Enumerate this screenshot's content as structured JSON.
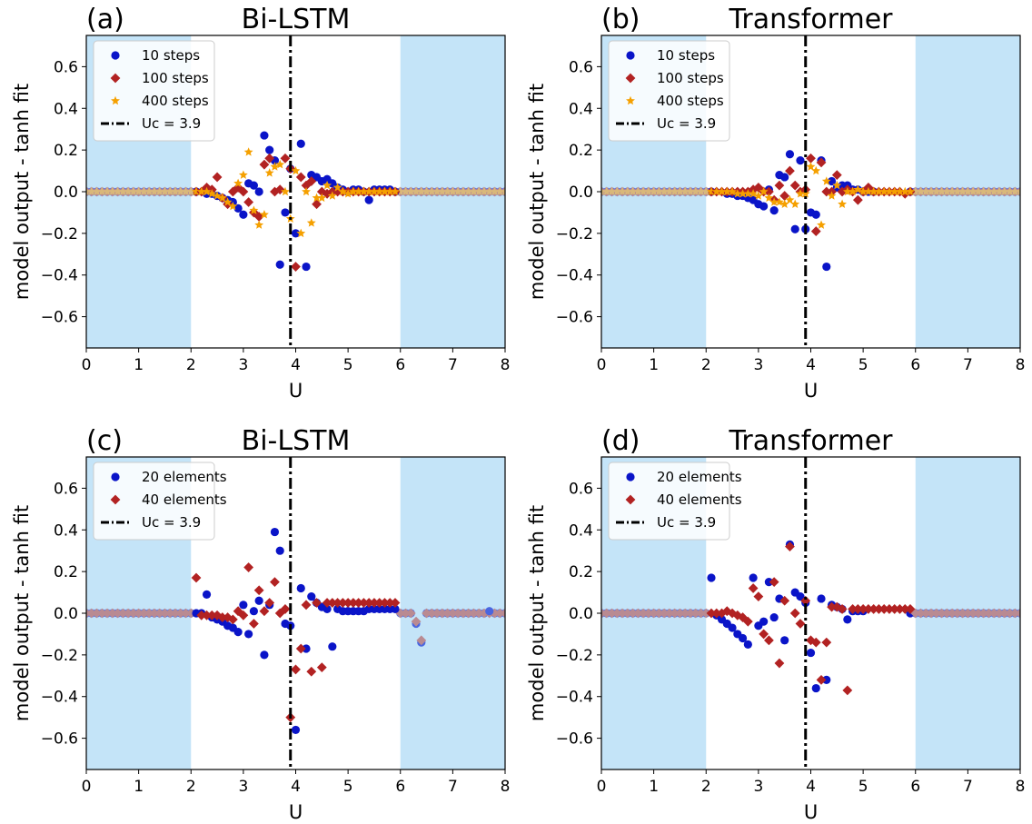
{
  "figure": {
    "colors": {
      "shade": "#c4e4f8",
      "blue": "#0a14c8",
      "blue_outside": "#4a66e0",
      "red": "#b22222",
      "red_outside": "#b98a92",
      "orange": "#f5a000",
      "orange_outside": "#d9b87a",
      "critical_line": "#000000"
    }
  },
  "chart_data": [
    {
      "type": "scatter",
      "panel_label": "(a)",
      "title": "Bi-LSTM",
      "xlabel": "U",
      "ylabel": "model output - tanh fit",
      "xlim": [
        0,
        8
      ],
      "ylim": [
        -0.75,
        0.75
      ],
      "xticks": [
        "0",
        "1",
        "2",
        "3",
        "4",
        "5",
        "6",
        "7",
        "8"
      ],
      "yticks": [
        "0.6",
        "0.4",
        "0.2",
        "0.0",
        "−0.2",
        "−0.4",
        "−0.6"
      ],
      "shaded_ranges": [
        [
          0,
          2
        ],
        [
          6,
          8
        ]
      ],
      "critical_line": {
        "x": 3.9,
        "label": "Uc = 3.9"
      },
      "legend_position": "upper left",
      "series": [
        {
          "name": "10 steps",
          "marker": "circle",
          "color": "blue",
          "x": [
            2.3,
            2.4,
            2.5,
            2.6,
            2.7,
            2.8,
            2.9,
            3.0,
            3.1,
            3.2,
            3.3,
            3.4,
            3.5,
            3.6,
            3.7,
            3.8,
            3.9,
            4.0,
            4.1,
            4.2,
            4.3,
            4.4,
            4.5,
            4.6,
            4.7,
            4.8,
            4.9,
            5.0,
            5.1,
            5.2,
            5.3,
            5.4,
            5.5,
            5.6,
            5.7,
            5.8,
            5.9
          ],
          "y": [
            -0.01,
            -0.01,
            -0.02,
            -0.03,
            -0.04,
            -0.05,
            -0.08,
            -0.11,
            0.04,
            0.03,
            0.0,
            0.27,
            0.2,
            0.15,
            -0.35,
            -0.1,
            0.11,
            -0.2,
            0.23,
            -0.36,
            0.08,
            0.07,
            0.05,
            0.06,
            0.04,
            0.02,
            0.01,
            0.0,
            0.01,
            0.01,
            0.0,
            -0.04,
            0.01,
            0.01,
            0.01,
            0.01,
            0.0
          ]
        },
        {
          "name": "100 steps",
          "marker": "diamond",
          "color": "red",
          "x": [
            2.2,
            2.3,
            2.4,
            2.5,
            2.6,
            2.7,
            2.8,
            2.9,
            3.0,
            3.1,
            3.2,
            3.3,
            3.4,
            3.5,
            3.6,
            3.7,
            3.8,
            3.9,
            4.0,
            4.1,
            4.2,
            4.3,
            4.4,
            4.5,
            4.6,
            4.7,
            4.8,
            4.9,
            5.0,
            5.1,
            5.2,
            5.3,
            5.4,
            5.5,
            5.6,
            5.7,
            5.8,
            5.9
          ],
          "y": [
            0.0,
            0.02,
            0.01,
            0.07,
            -0.03,
            -0.06,
            0.0,
            0.02,
            0.0,
            -0.05,
            -0.1,
            -0.12,
            0.13,
            0.16,
            0.0,
            0.01,
            0.16,
            0.11,
            -0.36,
            0.07,
            0.03,
            0.05,
            -0.06,
            0.0,
            -0.01,
            0.0,
            0.0,
            0.0,
            0.0,
            0.0,
            0.0,
            0.0,
            0.0,
            0.0,
            0.0,
            0.0,
            0.0,
            0.0
          ]
        },
        {
          "name": "400 steps",
          "marker": "star",
          "color": "orange",
          "x": [
            2.2,
            2.3,
            2.4,
            2.5,
            2.6,
            2.7,
            2.8,
            2.9,
            3.0,
            3.1,
            3.2,
            3.3,
            3.4,
            3.5,
            3.6,
            3.7,
            3.8,
            3.9,
            4.0,
            4.1,
            4.2,
            4.3,
            4.4,
            4.5,
            4.6,
            4.7,
            4.8,
            4.9,
            5.0,
            5.1,
            5.2,
            5.3,
            5.4,
            5.5,
            5.6,
            5.7,
            5.8,
            5.9
          ],
          "y": [
            0.0,
            0.0,
            -0.01,
            -0.02,
            -0.03,
            -0.05,
            -0.07,
            0.04,
            0.08,
            0.19,
            -0.09,
            -0.16,
            -0.11,
            0.09,
            0.12,
            0.13,
            0.0,
            -0.13,
            0.1,
            -0.2,
            0.0,
            -0.15,
            -0.03,
            -0.03,
            0.03,
            -0.02,
            0.02,
            0.0,
            -0.01,
            0.0,
            0.0,
            0.0,
            0.0,
            0.0,
            0.0,
            0.0,
            0.0,
            0.0
          ]
        }
      ]
    },
    {
      "type": "scatter",
      "panel_label": "(b)",
      "title": "Transformer",
      "xlabel": "U",
      "ylabel": "model output - tanh fit",
      "xlim": [
        0,
        8
      ],
      "ylim": [
        -0.75,
        0.75
      ],
      "xticks": [
        "0",
        "1",
        "2",
        "3",
        "4",
        "5",
        "6",
        "7",
        "8"
      ],
      "yticks": [
        "0.6",
        "0.4",
        "0.2",
        "0.0",
        "−0.2",
        "−0.4",
        "−0.6"
      ],
      "shaded_ranges": [
        [
          0,
          2
        ],
        [
          6,
          8
        ]
      ],
      "critical_line": {
        "x": 3.9,
        "label": "Uc = 3.9"
      },
      "legend_position": "upper left",
      "series": [
        {
          "name": "10 steps",
          "marker": "circle",
          "color": "blue",
          "x": [
            2.4,
            2.5,
            2.6,
            2.7,
            2.8,
            2.9,
            3.0,
            3.1,
            3.2,
            3.3,
            3.4,
            3.5,
            3.6,
            3.7,
            3.8,
            3.9,
            4.0,
            4.1,
            4.2,
            4.3,
            4.4,
            4.5,
            4.6,
            4.7,
            4.8,
            4.9,
            5.0,
            5.1,
            5.2
          ],
          "y": [
            -0.01,
            -0.01,
            -0.02,
            -0.02,
            -0.03,
            -0.04,
            -0.06,
            -0.07,
            0.01,
            -0.09,
            0.08,
            0.07,
            0.18,
            -0.18,
            0.15,
            -0.18,
            -0.1,
            -0.11,
            0.15,
            -0.36,
            0.05,
            0.02,
            0.03,
            0.03,
            0.01,
            0.01,
            0.0,
            0.0,
            0.0
          ]
        },
        {
          "name": "100 steps",
          "marker": "diamond",
          "color": "red",
          "x": [
            2.2,
            2.3,
            2.4,
            2.5,
            2.6,
            2.7,
            2.8,
            2.9,
            3.0,
            3.1,
            3.2,
            3.3,
            3.4,
            3.5,
            3.6,
            3.7,
            3.8,
            3.9,
            4.0,
            4.1,
            4.2,
            4.3,
            4.4,
            4.5,
            4.6,
            4.7,
            4.8,
            4.9,
            5.0,
            5.1,
            5.2,
            5.3,
            5.4,
            5.5,
            5.6,
            5.7,
            5.8,
            5.9
          ],
          "y": [
            0.0,
            0.0,
            0.0,
            0.0,
            0.0,
            0.0,
            0.0,
            0.01,
            0.02,
            0.0,
            0.0,
            -0.04,
            0.03,
            -0.02,
            0.1,
            0.03,
            0.0,
            0.01,
            0.16,
            -0.19,
            0.14,
            0.0,
            0.0,
            0.08,
            0.0,
            0.01,
            0.0,
            -0.04,
            0.0,
            0.02,
            0.0,
            0.0,
            0.0,
            0.0,
            0.0,
            0.0,
            -0.01,
            0.0
          ]
        },
        {
          "name": "400 steps",
          "marker": "star",
          "color": "orange",
          "x": [
            2.2,
            2.3,
            2.4,
            2.5,
            2.6,
            2.7,
            2.8,
            2.9,
            3.0,
            3.1,
            3.2,
            3.3,
            3.4,
            3.5,
            3.6,
            3.7,
            3.8,
            3.9,
            4.0,
            4.1,
            4.2,
            4.3,
            4.4,
            4.5,
            4.6,
            4.7,
            4.8,
            4.9,
            5.0,
            5.1,
            5.2,
            5.3,
            5.4,
            5.5,
            5.6,
            5.7,
            5.8,
            5.9
          ],
          "y": [
            0.0,
            0.0,
            0.0,
            0.0,
            -0.01,
            -0.01,
            -0.01,
            -0.01,
            -0.02,
            0.0,
            -0.03,
            -0.05,
            -0.05,
            -0.06,
            -0.04,
            -0.06,
            -0.01,
            -0.01,
            0.12,
            0.1,
            -0.16,
            0.05,
            -0.02,
            0.03,
            -0.06,
            0.0,
            0.0,
            0.01,
            0.0,
            0.0,
            0.0,
            0.0,
            0.0,
            0.0,
            0.0,
            0.0,
            0.0,
            0.0
          ]
        }
      ]
    },
    {
      "type": "scatter",
      "panel_label": "(c)",
      "title": "Bi-LSTM",
      "xlabel": "U",
      "ylabel": "model output - tanh fit",
      "xlim": [
        0,
        8
      ],
      "ylim": [
        -0.75,
        0.75
      ],
      "xticks": [
        "0",
        "1",
        "2",
        "3",
        "4",
        "5",
        "6",
        "7",
        "8"
      ],
      "yticks": [
        "0.6",
        "0.4",
        "0.2",
        "0.0",
        "−0.2",
        "−0.4",
        "−0.6"
      ],
      "shaded_ranges": [
        [
          0,
          2
        ],
        [
          6,
          8
        ]
      ],
      "critical_line": {
        "x": 3.9,
        "label": "Uc = 3.9"
      },
      "legend_position": "upper left",
      "series": [
        {
          "name": "20 elements",
          "marker": "circle",
          "color": "blue",
          "x": [
            2.1,
            2.2,
            2.3,
            2.4,
            2.5,
            2.6,
            2.7,
            2.8,
            2.9,
            3.0,
            3.1,
            3.2,
            3.3,
            3.4,
            3.5,
            3.6,
            3.7,
            3.8,
            3.9,
            4.0,
            4.1,
            4.2,
            4.3,
            4.4,
            4.5,
            4.6,
            4.7,
            4.8,
            4.9,
            5.0,
            5.1,
            5.2,
            5.3,
            5.4,
            5.5,
            5.6,
            5.7,
            5.8,
            5.9,
            6.3,
            6.4,
            7.7
          ],
          "y": [
            0.0,
            0.0,
            0.09,
            -0.02,
            -0.03,
            -0.04,
            -0.06,
            -0.07,
            -0.09,
            0.04,
            -0.1,
            0.01,
            0.06,
            -0.2,
            0.04,
            0.39,
            0.3,
            -0.05,
            -0.06,
            -0.56,
            0.12,
            -0.17,
            0.08,
            0.05,
            0.03,
            0.02,
            -0.16,
            0.02,
            0.01,
            0.01,
            0.01,
            0.01,
            0.01,
            0.02,
            0.02,
            0.02,
            0.02,
            0.02,
            0.02,
            -0.05,
            -0.14,
            0.01
          ]
        },
        {
          "name": "40 elements",
          "marker": "diamond",
          "color": "red",
          "x": [
            2.1,
            2.2,
            2.3,
            2.4,
            2.5,
            2.6,
            2.7,
            2.8,
            2.9,
            3.0,
            3.1,
            3.2,
            3.3,
            3.4,
            3.5,
            3.6,
            3.7,
            3.8,
            3.9,
            4.0,
            4.1,
            4.2,
            4.3,
            4.4,
            4.5,
            4.6,
            4.7,
            4.8,
            4.9,
            5.0,
            5.1,
            5.2,
            5.3,
            5.4,
            5.5,
            5.6,
            5.7,
            5.8,
            5.9,
            6.3,
            6.4
          ],
          "y": [
            0.17,
            -0.01,
            -0.01,
            -0.01,
            -0.01,
            -0.02,
            -0.02,
            -0.03,
            0.01,
            -0.01,
            0.22,
            -0.05,
            0.11,
            0.01,
            0.05,
            0.15,
            0.0,
            0.02,
            -0.5,
            -0.27,
            -0.17,
            0.04,
            -0.28,
            0.05,
            -0.26,
            0.05,
            0.05,
            0.05,
            0.05,
            0.05,
            0.05,
            0.05,
            0.05,
            0.05,
            0.05,
            0.05,
            0.05,
            0.05,
            0.05,
            -0.04,
            -0.13
          ]
        }
      ]
    },
    {
      "type": "scatter",
      "panel_label": "(d)",
      "title": "Transformer",
      "xlabel": "U",
      "ylabel": "model output - tanh fit",
      "xlim": [
        0,
        8
      ],
      "ylim": [
        -0.75,
        0.75
      ],
      "xticks": [
        "0",
        "1",
        "2",
        "3",
        "4",
        "5",
        "6",
        "7",
        "8"
      ],
      "yticks": [
        "0.6",
        "0.4",
        "0.2",
        "0.0",
        "−0.2",
        "−0.4",
        "−0.6"
      ],
      "shaded_ranges": [
        [
          0,
          2
        ],
        [
          6,
          8
        ]
      ],
      "critical_line": {
        "x": 3.9,
        "label": "Uc = 3.9"
      },
      "legend_position": "upper left",
      "series": [
        {
          "name": "20 elements",
          "marker": "circle",
          "color": "blue",
          "x": [
            2.1,
            2.2,
            2.3,
            2.4,
            2.5,
            2.6,
            2.7,
            2.8,
            2.9,
            3.0,
            3.1,
            3.2,
            3.3,
            3.4,
            3.5,
            3.6,
            3.7,
            3.8,
            3.9,
            4.0,
            4.1,
            4.2,
            4.3,
            4.4,
            4.5,
            4.6,
            4.7,
            4.8,
            4.9,
            5.0
          ],
          "y": [
            0.17,
            -0.01,
            -0.03,
            -0.05,
            -0.07,
            -0.1,
            -0.12,
            -0.15,
            0.17,
            -0.06,
            -0.04,
            0.15,
            -0.02,
            0.07,
            -0.13,
            0.33,
            0.1,
            0.08,
            0.05,
            -0.19,
            -0.36,
            0.07,
            -0.32,
            0.04,
            0.03,
            0.02,
            -0.03,
            0.01,
            0.01,
            0.01
          ]
        },
        {
          "name": "40 elements",
          "marker": "diamond",
          "color": "red",
          "x": [
            2.1,
            2.2,
            2.3,
            2.4,
            2.5,
            2.6,
            2.7,
            2.8,
            2.9,
            3.0,
            3.1,
            3.2,
            3.3,
            3.4,
            3.5,
            3.6,
            3.7,
            3.8,
            3.9,
            4.0,
            4.1,
            4.2,
            4.3,
            4.4,
            4.5,
            4.6,
            4.7,
            4.8,
            4.9,
            5.0,
            5.1,
            5.2,
            5.3,
            5.4,
            5.5,
            5.6,
            5.7,
            5.8,
            5.9
          ],
          "y": [
            0.0,
            0.0,
            0.0,
            0.01,
            0.0,
            -0.01,
            -0.02,
            -0.04,
            0.12,
            0.08,
            -0.1,
            -0.13,
            0.15,
            -0.24,
            0.06,
            0.32,
            0.0,
            -0.05,
            0.06,
            -0.13,
            -0.14,
            -0.32,
            -0.14,
            0.03,
            0.03,
            0.02,
            -0.37,
            0.02,
            0.02,
            0.02,
            0.02,
            0.02,
            0.02,
            0.02,
            0.02,
            0.02,
            0.02,
            0.02,
            0.02
          ]
        }
      ]
    }
  ]
}
